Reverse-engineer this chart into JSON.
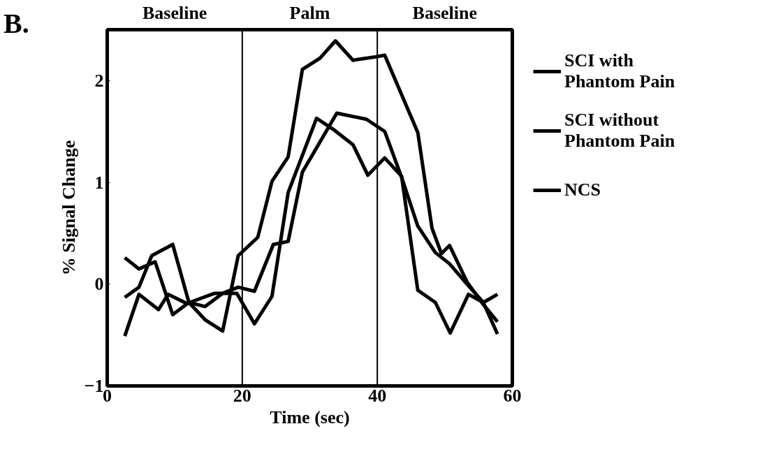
{
  "chart_data": {
    "type": "line",
    "title": "B.",
    "xlabel": "Time (sec)",
    "ylabel": "% Signal Change",
    "xlim": [
      0,
      60
    ],
    "ylim": [
      -1,
      2.5
    ],
    "xticks": [
      0,
      20,
      40,
      60
    ],
    "yticks": [
      -1,
      0,
      1,
      2
    ],
    "grid": false,
    "legend": "right",
    "marker": "none",
    "line_style": "solid",
    "series": [
      {
        "name": "SCI with Phantom Pain",
        "color": "#000000",
        "x": [
          2.6,
          4.7,
          6.6,
          9.7,
          12.1,
          14.5,
          17.1,
          19.4,
          22.3,
          24.4,
          26.8,
          28.9,
          31.5,
          33.8,
          36.4,
          39.5,
          41.1,
          46,
          48.1,
          49.5,
          50.7,
          53.3,
          55.7,
          57.8
        ],
        "values": [
          -0.13,
          -0.03,
          0.28,
          0.39,
          -0.18,
          -0.35,
          -0.46,
          0.28,
          0.46,
          1.01,
          1.25,
          2.11,
          2.22,
          2.39,
          2.2,
          2.23,
          2.25,
          1.49,
          0.55,
          0.3,
          0.38,
          0.02,
          -0.2,
          -0.37
        ]
      },
      {
        "name": "SCI without Phantom Pain",
        "color": "#000000",
        "x": [
          2.6,
          4.7,
          7.1,
          9.7,
          12.1,
          14.5,
          17.1,
          19.4,
          21.8,
          24.6,
          26.8,
          28.9,
          34,
          38.4,
          41.1,
          43.6,
          46,
          48.6,
          50.7,
          53.3,
          55.7,
          57.8
        ],
        "values": [
          0.26,
          0.15,
          0.22,
          -0.3,
          -0.18,
          -0.22,
          -0.09,
          -0.03,
          -0.07,
          0.39,
          0.42,
          1.1,
          1.68,
          1.62,
          1.5,
          1.05,
          0.57,
          0.31,
          0.2,
          0.0,
          -0.18,
          -0.1
        ]
      },
      {
        "name": "NCS",
        "color": "#000000",
        "x": [
          2.6,
          4.7,
          7.6,
          9,
          11.8,
          15.9,
          19.2,
          21.8,
          24.4,
          26.8,
          31,
          33.5,
          36.4,
          38.6,
          41.1,
          43.6,
          46,
          48.6,
          50.8,
          53.5,
          55.7,
          57.8
        ],
        "values": [
          -0.51,
          -0.1,
          -0.25,
          -0.1,
          -0.19,
          -0.09,
          -0.09,
          -0.39,
          -0.12,
          0.9,
          1.63,
          1.52,
          1.37,
          1.07,
          1.24,
          1.06,
          -0.06,
          -0.18,
          -0.48,
          -0.1,
          -0.18,
          -0.49
        ]
      }
    ],
    "ref_lines": [
      {
        "axis": "x",
        "value": 20,
        "color": "#000000"
      },
      {
        "axis": "x",
        "value": 40,
        "color": "#000000"
      }
    ],
    "annotations": [
      "Baseline",
      "Palm",
      "Baseline"
    ]
  }
}
